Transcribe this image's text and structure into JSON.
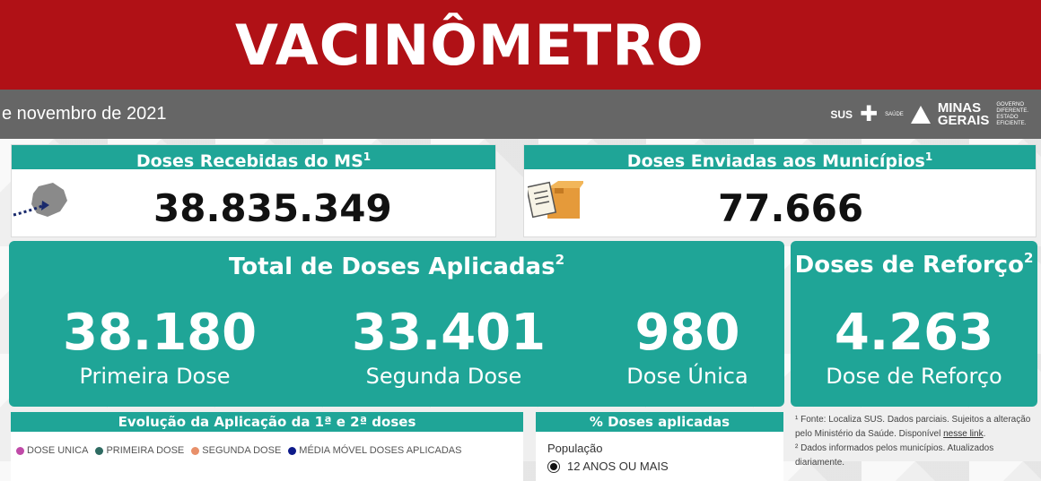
{
  "header": {
    "title": "VACINÔMETRO",
    "date_text": "e novembro de 2021",
    "logos": {
      "sus": "SUS",
      "saude": "SAÚDE",
      "state_line1": "MINAS",
      "state_line2": "GERAIS",
      "slogan_line1": "GOVERNO",
      "slogan_line2": "DIFERENTE.",
      "slogan_line3": "ESTADO",
      "slogan_line4": "EFICIENTE."
    }
  },
  "doses_recebidas": {
    "title": "Doses Recebidas do MS",
    "sup": "1",
    "value": "38.835.349"
  },
  "doses_enviadas": {
    "title": "Doses Enviadas aos Municípios",
    "sup": "1",
    "value": "77.666"
  },
  "total_aplicadas": {
    "title": "Total de Doses Aplicadas",
    "sup": "2",
    "metrics": [
      {
        "value": "38.180",
        "label": "Primeira Dose"
      },
      {
        "value": "33.401",
        "label": "Segunda Dose"
      },
      {
        "value": "980",
        "label": "Dose Única"
      }
    ]
  },
  "reforco": {
    "title": "Doses de Reforço",
    "sup": "2",
    "value": "4.263",
    "label": "Dose de Reforço"
  },
  "evolucao": {
    "title": "Evolução da Aplicação da 1ª e 2ª doses",
    "legend": [
      {
        "label": "DOSE UNICA",
        "color": "#c04aa8"
      },
      {
        "label": "PRIMEIRA DOSE",
        "color": "#2e6b62"
      },
      {
        "label": "SEGUNDA DOSE",
        "color": "#e8906a"
      },
      {
        "label": "MÉDIA MÓVEL DOSES APLICADAS",
        "color": "#0d1a8a"
      }
    ]
  },
  "percent_panel": {
    "title": "% Doses aplicadas",
    "filter_label": "População",
    "selected_option": "12 ANOS OU MAIS"
  },
  "footnotes": {
    "note1_a": "¹ Fonte: Localiza SUS. Dados parciais. Sujeitos a alteração",
    "note1_b": "pelo Ministério da Saúde. Disponível",
    "note1_link": "nesse link",
    "note1_end": ".",
    "note2_a": "² Dados informados pelos municípios. Atualizados",
    "note2_b": "diariamente."
  },
  "colors": {
    "banner": "#b01116",
    "date_bar": "#666666",
    "teal": "#1fa597"
  }
}
